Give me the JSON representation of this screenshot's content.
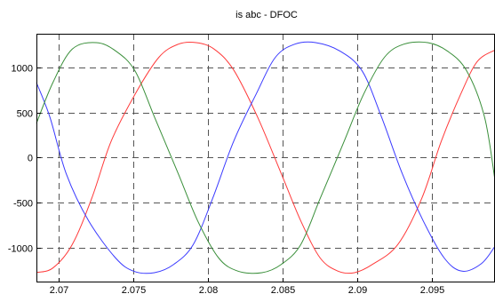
{
  "chart_data": {
    "type": "line",
    "title": "is  abc  - DFOC",
    "xlabel": "",
    "ylabel": "",
    "xlim": [
      2.0685,
      2.0992
    ],
    "ylim": [
      -1380,
      1370
    ],
    "x_ticks": [
      2.07,
      2.075,
      2.08,
      2.085,
      2.09,
      2.095
    ],
    "x_tick_labels": [
      "2.07",
      "2.075",
      "2.08",
      "2.085",
      "2.09",
      "2.095"
    ],
    "y_ticks": [
      1000,
      500,
      0,
      -500,
      -1000
    ],
    "y_tick_labels": [
      "1000",
      "500",
      "0",
      "-500",
      "-1000"
    ],
    "grid": true,
    "legend": "none",
    "series": [
      {
        "color": "#ff3a3a",
        "x": [
          2.0685,
          2.0696,
          2.0709,
          2.0722,
          2.0735,
          2.0751,
          2.0767,
          2.078,
          2.0792,
          2.0804,
          2.0817,
          2.0833,
          2.0849,
          2.0862,
          2.0875,
          2.0887,
          2.0898,
          2.091,
          2.0927,
          2.0943,
          2.0956,
          2.0969,
          2.098,
          2.0992
        ],
        "y": [
          -1270,
          -1220,
          -960,
          -450,
          180,
          700,
          1110,
          1255,
          1272,
          1200,
          970,
          450,
          -180,
          -700,
          -1110,
          -1255,
          -1272,
          -1180,
          -960,
          -450,
          180,
          700,
          1060,
          1190
        ]
      },
      {
        "color": "#3a3aff",
        "x": [
          2.0685,
          2.0694,
          2.0705,
          2.072,
          2.0738,
          2.075,
          2.0764,
          2.0777,
          2.079,
          2.0803,
          2.0817,
          2.0832,
          2.0845,
          2.0858,
          2.0872,
          2.0888,
          2.0903,
          2.0916,
          2.093,
          2.0944,
          2.0958,
          2.097,
          2.0983,
          2.0992
        ],
        "y": [
          830,
          450,
          -180,
          -700,
          -1110,
          -1255,
          -1272,
          -1180,
          -960,
          -450,
          180,
          700,
          1110,
          1255,
          1272,
          1180,
          960,
          450,
          -180,
          -700,
          -1110,
          -1255,
          -1170,
          -980
        ]
      },
      {
        "color": "#3a8f3a",
        "x": [
          2.0685,
          2.0696,
          2.0709,
          2.0725,
          2.0738,
          2.0751,
          2.0764,
          2.078,
          2.0793,
          2.0807,
          2.082,
          2.0836,
          2.0849,
          2.0862,
          2.0875,
          2.0891,
          2.0904,
          2.0918,
          2.0931,
          2.0947,
          2.096,
          2.0973,
          2.0985,
          2.0992
        ],
        "y": [
          380,
          830,
          1200,
          1272,
          1180,
          960,
          450,
          -180,
          -700,
          -1110,
          -1255,
          -1272,
          -1180,
          -960,
          -450,
          180,
          700,
          1110,
          1255,
          1272,
          1180,
          960,
          450,
          -250
        ]
      }
    ]
  }
}
